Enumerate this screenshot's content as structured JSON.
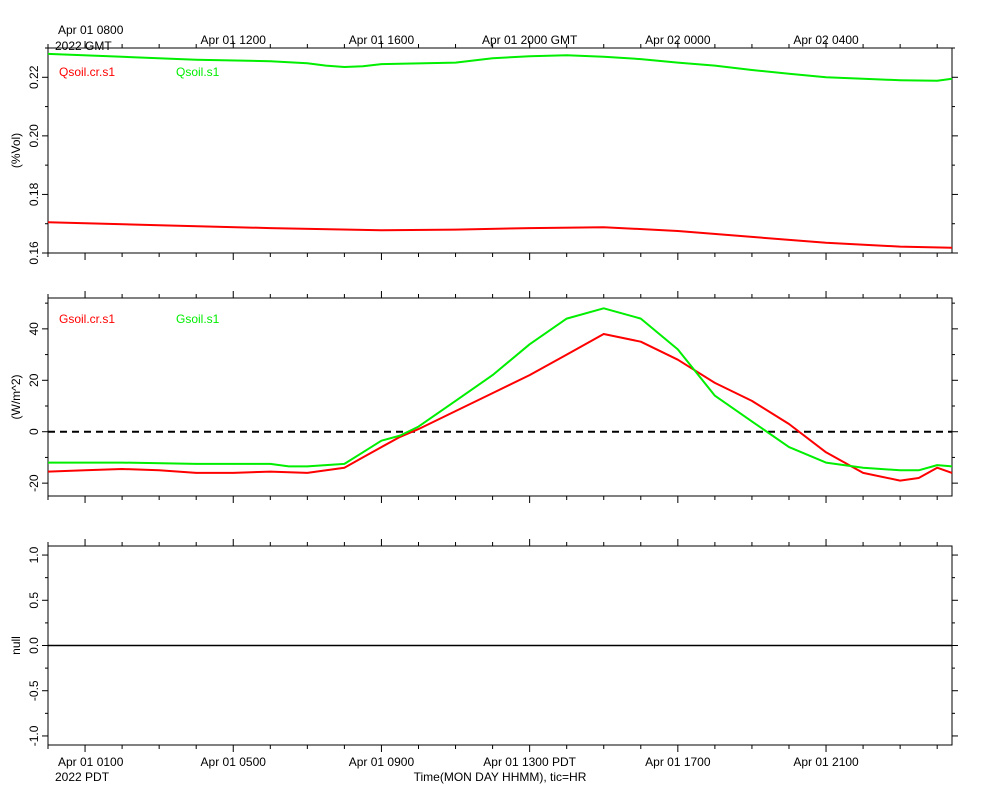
{
  "chart_data": {
    "type": "line",
    "x_units": "hours since Apr 01 0100 PDT",
    "x_range": [
      -1,
      23.4
    ],
    "gmt_axis": {
      "first_label_line1": "Apr 01 0800",
      "first_label_line2": "2022 GMT",
      "ticks": [
        {
          "x": 4,
          "label": "Apr 01 1200"
        },
        {
          "x": 8,
          "label": "Apr 01 1600"
        },
        {
          "x": 12,
          "label": "Apr 01 2000 GMT"
        },
        {
          "x": 16,
          "label": "Apr 02 0000"
        },
        {
          "x": 20,
          "label": "Apr 02 0400"
        }
      ]
    },
    "pdt_axis": {
      "first_label_line1": "Apr 01 0100",
      "first_label_line2": "2022 PDT",
      "ticks": [
        {
          "x": 4,
          "label": "Apr 01 0500"
        },
        {
          "x": 8,
          "label": "Apr 01 0900"
        },
        {
          "x": 12,
          "label": "Apr 01 1300 PDT"
        },
        {
          "x": 16,
          "label": "Apr 01 1700"
        },
        {
          "x": 20,
          "label": "Apr 01 2100"
        }
      ],
      "xlabel": "Time(MON DAY HHMM), tic=HR"
    },
    "panels": [
      {
        "id": "moisture",
        "ylabel": "(%Vol)",
        "ylim": [
          0.16,
          0.23
        ],
        "yticks": [
          0.16,
          0.18,
          0.2,
          0.22
        ],
        "ytick_labels": [
          "0.16",
          "0.18",
          "0.20",
          "0.22"
        ],
        "zero_line": false,
        "series": [
          {
            "name": "Qsoil.cr.s1",
            "color": "#ff0000",
            "x": [
              -1,
              2,
              5,
              8,
              10,
              12,
              14,
              16,
              18,
              20,
              22,
              23.4
            ],
            "y": [
              0.1705,
              0.1695,
              0.1685,
              0.1678,
              0.168,
              0.1685,
              0.1688,
              0.1675,
              0.1655,
              0.1635,
              0.1622,
              0.1618
            ]
          },
          {
            "name": "Qsoil.s1",
            "color": "#00ee00",
            "x": [
              -1,
              1,
              3,
              5,
              6,
              6.5,
              7,
              7.5,
              8,
              10,
              11,
              12,
              13,
              14,
              15,
              16,
              17,
              18,
              19,
              20,
              21,
              22,
              23,
              23.4
            ],
            "y": [
              0.228,
              0.227,
              0.226,
              0.2255,
              0.2248,
              0.224,
              0.2235,
              0.2238,
              0.2245,
              0.225,
              0.2265,
              0.2272,
              0.2275,
              0.227,
              0.2262,
              0.225,
              0.224,
              0.2225,
              0.2212,
              0.22,
              0.2195,
              0.219,
              0.2188,
              0.2195
            ]
          }
        ]
      },
      {
        "id": "heatflux",
        "ylabel": "(W/m^2)",
        "ylim": [
          -25,
          52
        ],
        "yticks": [
          -20,
          0,
          20,
          40
        ],
        "ytick_labels": [
          "-20",
          "0",
          "20",
          "40"
        ],
        "zero_line": true,
        "series": [
          {
            "name": "Gsoil.cr.s1",
            "color": "#ff0000",
            "x": [
              -1,
              0,
              1,
              2,
              3,
              4,
              5,
              5.5,
              6,
              7,
              7.5,
              8,
              8.5,
              9,
              10,
              11,
              12,
              13,
              14,
              15,
              16,
              17,
              18,
              19,
              20,
              21,
              22,
              22.5,
              23,
              23.4
            ],
            "y": [
              -15.5,
              -15,
              -14.5,
              -15,
              -16,
              -16,
              -15.5,
              -15.8,
              -16,
              -14,
              -10,
              -6,
              -2,
              1,
              8,
              15,
              22,
              30,
              38,
              35,
              28,
              19,
              12,
              3,
              -8,
              -16,
              -19,
              -18,
              -14,
              -16
            ]
          },
          {
            "name": "Gsoil.s1",
            "color": "#00ee00",
            "x": [
              -1,
              1,
              3,
              5,
              5.5,
              6,
              7,
              7.5,
              8,
              8.5,
              9,
              10,
              11,
              12,
              13,
              14,
              15,
              16,
              17,
              18,
              19,
              20,
              21,
              22,
              22.5,
              23,
              23.4
            ],
            "y": [
              -12,
              -12,
              -12.5,
              -12.5,
              -13.5,
              -13.5,
              -12.5,
              -8,
              -3.5,
              -1.5,
              2,
              12,
              22,
              34,
              44,
              48,
              44,
              32,
              14,
              4,
              -6,
              -12,
              -14,
              -15,
              -15,
              -13,
              -13.5
            ]
          }
        ]
      },
      {
        "id": "null",
        "ylabel": "null",
        "ylim": [
          -1.1,
          1.1
        ],
        "yticks": [
          -1.0,
          -0.5,
          0.0,
          0.5,
          1.0
        ],
        "ytick_labels": [
          "-1.0",
          "-0.5",
          "0.0",
          "0.5",
          "1.0"
        ],
        "zero_line": false,
        "flat_line_y": 0,
        "series": []
      }
    ]
  }
}
